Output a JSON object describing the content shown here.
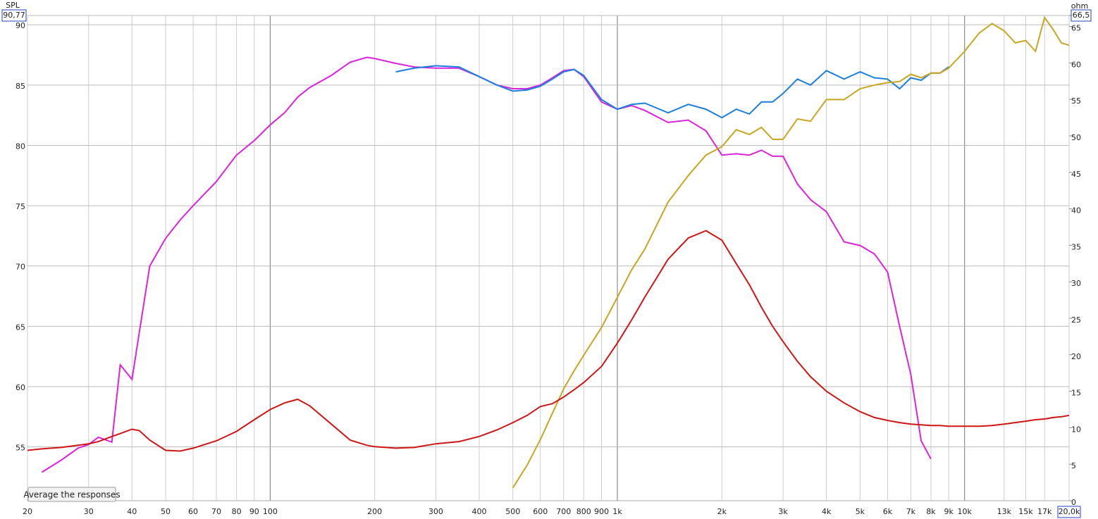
{
  "chart_data": {
    "type": "line",
    "y_axis_label": "SPL",
    "y2_axis_label": "ohm",
    "button": "Average the responses",
    "xscale": "log",
    "grid": true,
    "xlim": [
      20,
      20000
    ],
    "ylim": [
      50.54,
      90.77
    ],
    "y2lim": [
      0,
      66.5
    ],
    "xticks": [
      20,
      30,
      40,
      50,
      60,
      70,
      80,
      90,
      100,
      200,
      300,
      400,
      500,
      600,
      700,
      800,
      900,
      {
        "value": 1000,
        "label": "1k"
      },
      {
        "value": 2000,
        "label": "2k"
      },
      {
        "value": 3000,
        "label": "3k"
      },
      {
        "value": 4000,
        "label": "4k"
      },
      {
        "value": 5000,
        "label": "5k"
      },
      {
        "value": 6000,
        "label": "6k"
      },
      {
        "value": 7000,
        "label": "7k"
      },
      {
        "value": 8000,
        "label": "8k"
      },
      {
        "value": 9000,
        "label": "9k"
      },
      {
        "value": 10000,
        "label": "10k"
      },
      {
        "value": 13000,
        "label": "13k"
      },
      {
        "value": 15000,
        "label": "15k"
      },
      {
        "value": 17000,
        "label": "17k"
      },
      {
        "value": 20000,
        "label": "20,0k"
      }
    ],
    "yticks": [
      55,
      60,
      65,
      70,
      75,
      80,
      85,
      90,
      {
        "value": 90.77,
        "label": "90,77"
      }
    ],
    "y2ticks": [
      0,
      5,
      10,
      15,
      20,
      25,
      30,
      35,
      40,
      45,
      50,
      55,
      60,
      65,
      {
        "value": 66.5,
        "label": "66,5"
      }
    ],
    "x": [
      20,
      22,
      25,
      28,
      30,
      32,
      35,
      37,
      38,
      40,
      42,
      45,
      50,
      55,
      60,
      70,
      80,
      90,
      100,
      110,
      120,
      130,
      150,
      170,
      190,
      200,
      230,
      260,
      300,
      350,
      400,
      450,
      500,
      550,
      600,
      650,
      700,
      750,
      800,
      900,
      1000,
      1100,
      1200,
      1400,
      1600,
      1800,
      2000,
      2200,
      2400,
      2600,
      2800,
      3000,
      3300,
      3600,
      4000,
      4500,
      5000,
      5500,
      6000,
      6500,
      7000,
      7500,
      8000,
      8500,
      9000,
      10000,
      11000,
      12000,
      13000,
      14000,
      15000,
      16000,
      17000,
      18000,
      19000,
      20000
    ],
    "series": [
      {
        "color": "#dd22dd",
        "values": [
          null,
          52.9,
          53.9,
          54.9,
          55.2,
          55.8,
          55.4,
          61.8,
          61.4,
          60.6,
          64.5,
          70,
          72.3,
          73.8,
          75,
          77,
          79.2,
          80.4,
          81.7,
          82.7,
          84,
          84.8,
          85.8,
          86.9,
          87.3,
          87.2,
          86.8,
          86.5,
          86.4,
          86.4,
          85.7,
          85,
          84.7,
          84.7,
          85,
          85.6,
          86.2,
          86.3,
          85.7,
          83.6,
          83,
          83.3,
          82.9,
          81.9,
          82.1,
          81.2,
          79.2,
          79.3,
          79.2,
          79.6,
          79.1,
          79.1,
          76.8,
          75.5,
          74.5,
          72,
          71.7,
          71,
          69.5,
          65,
          61,
          55.5,
          54,
          null,
          null,
          null,
          null,
          null,
          null,
          null,
          null,
          null,
          null,
          null,
          null,
          null
        ]
      },
      {
        "color": "#1a7fe0",
        "values": [
          null,
          null,
          null,
          null,
          null,
          null,
          null,
          null,
          null,
          null,
          null,
          null,
          null,
          null,
          null,
          null,
          null,
          null,
          null,
          null,
          null,
          null,
          null,
          null,
          null,
          null,
          86.1,
          86.4,
          86.6,
          86.5,
          85.7,
          85,
          84.5,
          84.6,
          84.9,
          85.5,
          86.1,
          86.3,
          85.8,
          83.8,
          83,
          83.4,
          83.5,
          82.7,
          83.4,
          83,
          82.3,
          83,
          82.6,
          83.6,
          83.6,
          84.3,
          85.5,
          85,
          86.2,
          85.5,
          86.1,
          85.6,
          85.5,
          84.7,
          85.6,
          85.4,
          86,
          86,
          86.5,
          null,
          null,
          null,
          null,
          null,
          null,
          null,
          null,
          null,
          null,
          null
        ]
      },
      {
        "color": "#c9a520",
        "values": [
          null,
          null,
          null,
          null,
          null,
          null,
          null,
          null,
          null,
          null,
          null,
          null,
          null,
          null,
          null,
          null,
          null,
          null,
          null,
          null,
          null,
          null,
          null,
          null,
          null,
          null,
          null,
          null,
          null,
          null,
          null,
          null,
          51.6,
          53.5,
          55.6,
          57.8,
          59.8,
          61.3,
          62.6,
          64.9,
          67.4,
          69.7,
          71.4,
          75.3,
          77.5,
          79.2,
          79.9,
          81.3,
          80.9,
          81.5,
          80.5,
          80.5,
          82.2,
          82,
          83.8,
          83.8,
          84.7,
          85,
          85.2,
          85.3,
          85.9,
          85.6,
          86,
          86,
          86.4,
          87.8,
          89.3,
          90.1,
          89.5,
          88.5,
          88.7,
          87.8,
          90.6,
          89.6,
          88.5,
          88.3
        ]
      },
      {
        "color": "#d01515",
        "axis": "y2",
        "values": [
          6.9,
          7.1,
          7.3,
          7.6,
          7.8,
          8.1,
          8.8,
          9.2,
          9.4,
          9.8,
          9.6,
          8.3,
          6.9,
          6.8,
          7.2,
          8.2,
          9.5,
          11.1,
          12.5,
          13.4,
          13.9,
          13,
          10.5,
          8.3,
          7.6,
          7.4,
          7.2,
          7.3,
          7.8,
          8.1,
          8.8,
          9.7,
          10.7,
          11.7,
          12.9,
          13.3,
          14.2,
          15.2,
          16.2,
          18.4,
          21.6,
          24.8,
          27.9,
          33.1,
          36,
          37,
          35.7,
          32.5,
          29.6,
          26.5,
          23.9,
          21.8,
          19.1,
          17,
          15,
          13.4,
          12.2,
          11.4,
          11,
          10.7,
          10.5,
          10.4,
          10.3,
          10.3,
          10.2,
          10.2,
          10.2,
          10.3,
          10.5,
          10.7,
          10.9,
          11.1,
          11.2,
          11.4,
          11.5,
          11.7
        ]
      }
    ]
  }
}
